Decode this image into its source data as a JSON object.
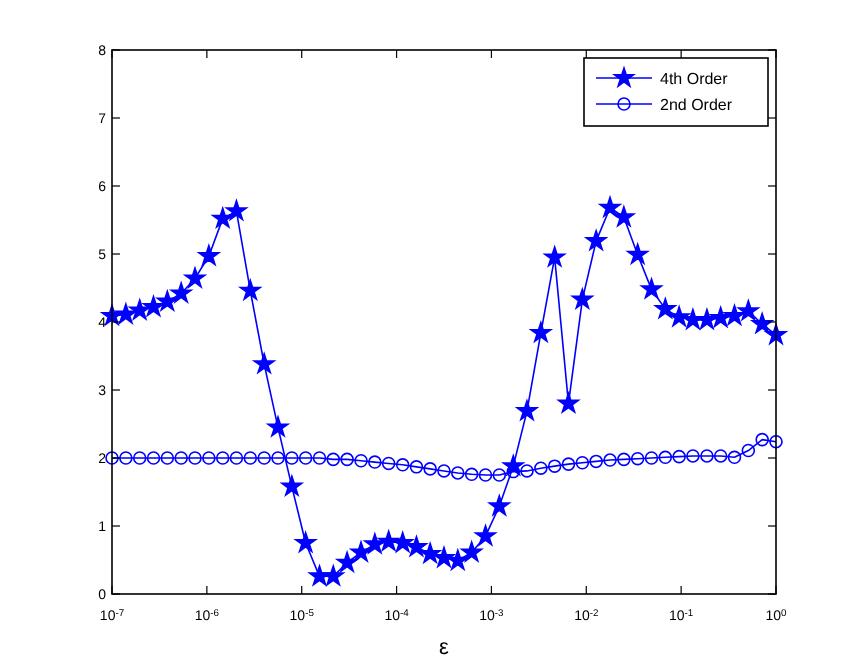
{
  "chart_data": {
    "type": "line",
    "xlabel": "ε",
    "log": "x",
    "grid": false,
    "legend": "top right",
    "xlim": [
      1e-07,
      1
    ],
    "ylim": [
      0,
      8
    ],
    "xticks": [
      {
        "value": 1e-07,
        "label": "10$^{-7}$"
      },
      {
        "value": 1e-06,
        "label": "10$^{-6}$"
      },
      {
        "value": 1e-05,
        "label": "10$^{-5}$"
      },
      {
        "value": 0.0001,
        "label": "10$^{-4}$"
      },
      {
        "value": 0.001,
        "label": "10$^{-3}$"
      },
      {
        "value": 0.01,
        "label": "10$^{-2}$"
      },
      {
        "value": 0.1,
        "label": "10$^{-1}$"
      },
      {
        "value": 1,
        "label": "10$^{0}$"
      }
    ],
    "yticks": [
      0,
      1,
      2,
      3,
      4,
      5,
      6,
      7,
      8
    ],
    "x": [
      1e-07,
      1.4e-07,
      1.96e-07,
      2.74e-07,
      3.83e-07,
      5.36e-07,
      7.5e-07,
      1.05e-06,
      1.47e-06,
      2.05e-06,
      2.87e-06,
      4.02e-06,
      5.62e-06,
      7.87e-06,
      1.1e-05,
      1.54e-05,
      2.15e-05,
      3.01e-05,
      4.22e-05,
      5.9e-05,
      8.25e-05,
      0.000116,
      0.000162,
      0.000226,
      0.000316,
      0.000442,
      0.000619,
      0.000866,
      0.00121,
      0.0017,
      0.00237,
      0.00332,
      0.00464,
      0.00649,
      0.00909,
      0.0127,
      0.0178,
      0.0249,
      0.0348,
      0.0487,
      0.0681,
      0.0953,
      0.133,
      0.187,
      0.261,
      0.365,
      0.511,
      0.715,
      1
    ],
    "series": [
      {
        "name": "4th Order",
        "color": "#0000ff",
        "marker": "star",
        "line_style": "solid",
        "values": [
          4.09,
          4.11,
          4.17,
          4.22,
          4.3,
          4.42,
          4.64,
          4.97,
          5.52,
          5.63,
          4.46,
          3.38,
          2.45,
          1.58,
          0.75,
          0.26,
          0.26,
          0.46,
          0.61,
          0.73,
          0.77,
          0.75,
          0.69,
          0.59,
          0.53,
          0.49,
          0.61,
          0.85,
          1.29,
          1.88,
          2.69,
          3.84,
          4.95,
          2.8,
          4.33,
          5.19,
          5.68,
          5.54,
          4.99,
          4.48,
          4.19,
          4.07,
          4.03,
          4.03,
          4.06,
          4.09,
          4.16,
          3.97,
          3.81
        ]
      },
      {
        "name": "2nd Order",
        "color": "#0000ff",
        "marker": "circle",
        "line_style": "solid",
        "values": [
          2.0,
          2.0,
          2.0,
          2.0,
          2.0,
          2.0,
          2.0,
          2.0,
          2.0,
          2.0,
          2.0,
          2.0,
          2.0,
          2.0,
          2.0,
          2.0,
          1.98,
          1.98,
          1.96,
          1.94,
          1.92,
          1.9,
          1.87,
          1.84,
          1.81,
          1.78,
          1.76,
          1.75,
          1.75,
          1.8,
          1.81,
          1.85,
          1.88,
          1.91,
          1.93,
          1.95,
          1.97,
          1.98,
          1.99,
          2.0,
          2.01,
          2.02,
          2.03,
          2.03,
          2.03,
          2.01,
          2.11,
          2.27,
          2.24
        ]
      }
    ]
  }
}
